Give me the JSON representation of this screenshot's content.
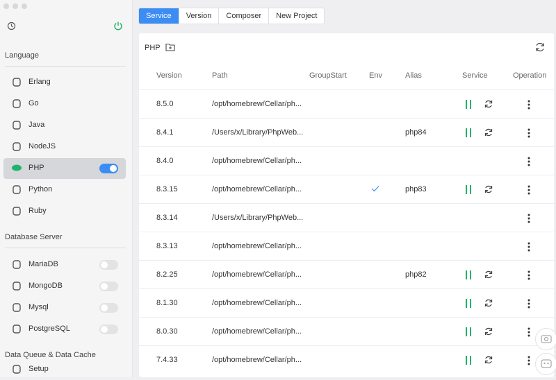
{
  "sidebar": {
    "sections": [
      {
        "title": "Language",
        "items": [
          {
            "label": "Erlang"
          },
          {
            "label": "Go"
          },
          {
            "label": "Java"
          },
          {
            "label": "NodeJS"
          },
          {
            "label": "PHP",
            "selected": true,
            "enabled": true
          },
          {
            "label": "Python"
          },
          {
            "label": "Ruby"
          }
        ]
      },
      {
        "title": "Database Server",
        "items": [
          {
            "label": "MariaDB",
            "enabled": false
          },
          {
            "label": "MongoDB",
            "enabled": false
          },
          {
            "label": "Mysql",
            "enabled": false
          },
          {
            "label": "PostgreSQL",
            "enabled": false
          }
        ]
      },
      {
        "title": "Data Queue & Data Cache",
        "items": [
          {
            "label": "Setup"
          }
        ]
      }
    ]
  },
  "tabs": {
    "items": [
      "Service",
      "Version",
      "Composer",
      "New Project"
    ],
    "active": 0
  },
  "panel": {
    "title": "PHP",
    "columns": [
      "Version",
      "Path",
      "GroupStart",
      "Env",
      "Alias",
      "Service",
      "Operation"
    ],
    "rows": [
      {
        "version": "8.5.0",
        "path": "/opt/homebrew/Cellar/ph...",
        "env": false,
        "running": true
      },
      {
        "version": "8.4.1",
        "path": "/Users/x/Library/PhpWeb...",
        "env": false,
        "alias": "php84",
        "running": true
      },
      {
        "version": "8.4.0",
        "path": "/opt/homebrew/Cellar/ph...",
        "env": false,
        "running": false
      },
      {
        "version": "8.3.15",
        "path": "/opt/homebrew/Cellar/ph...",
        "env": true,
        "alias": "php83",
        "running": true
      },
      {
        "version": "8.3.14",
        "path": "/Users/x/Library/PhpWeb...",
        "env": false,
        "running": false
      },
      {
        "version": "8.3.13",
        "path": "/opt/homebrew/Cellar/ph...",
        "env": false,
        "running": false
      },
      {
        "version": "8.2.25",
        "path": "/opt/homebrew/Cellar/ph...",
        "env": false,
        "alias": "php82",
        "running": true
      },
      {
        "version": "8.1.30",
        "path": "/opt/homebrew/Cellar/ph...",
        "env": false,
        "running": true
      },
      {
        "version": "8.0.30",
        "path": "/opt/homebrew/Cellar/ph...",
        "env": false,
        "running": true
      },
      {
        "version": "7.4.33",
        "path": "/opt/homebrew/Cellar/ph...",
        "env": false,
        "running": true
      }
    ]
  }
}
